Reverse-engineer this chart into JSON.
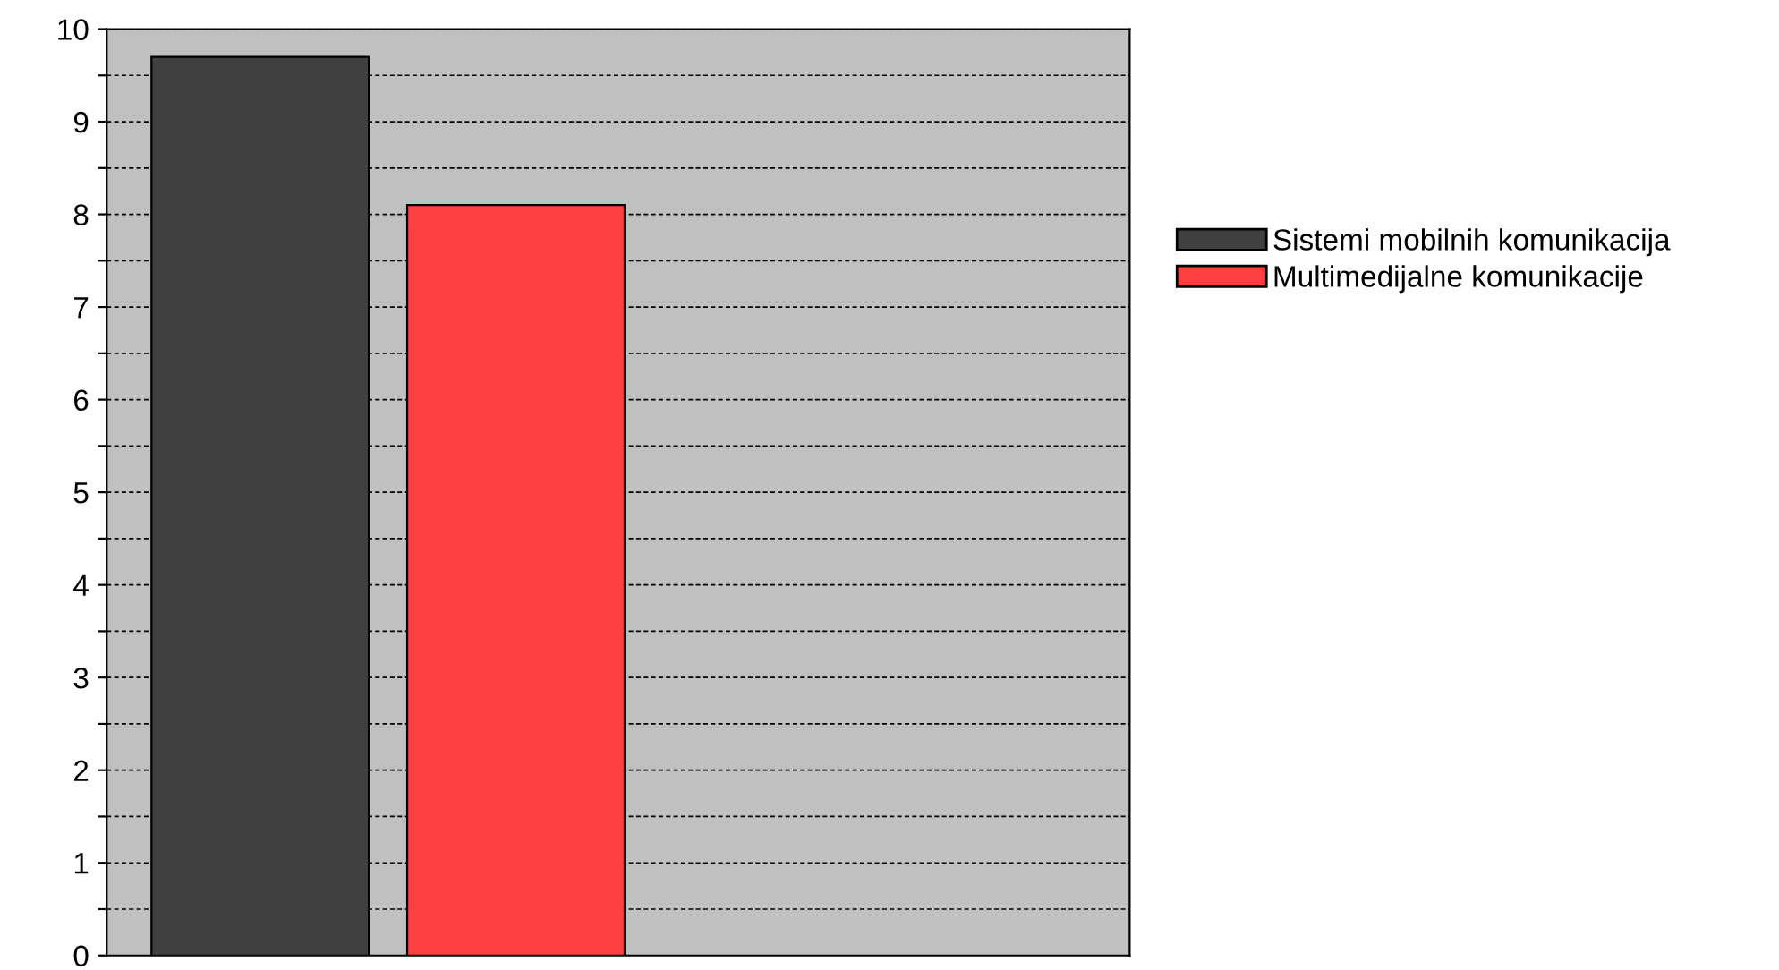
{
  "chart_data": {
    "type": "bar",
    "categories": [
      null
    ],
    "series": [
      {
        "name": "Sistemi mobilnih komunikacija",
        "color": "#404040",
        "values": [
          9.7
        ]
      },
      {
        "name": "Multimedijalne komunikacije",
        "color": "#ff4040",
        "values": [
          8.1
        ]
      }
    ],
    "ylim": [
      0,
      10
    ],
    "yticks": [
      0,
      {
        "value": 0.5,
        "label": null
      },
      1,
      {
        "value": 1.5,
        "label": null
      },
      2,
      {
        "value": 2.5,
        "label": null
      },
      3,
      {
        "value": 3.5,
        "label": null
      },
      4,
      {
        "value": 4.5,
        "label": null
      },
      5,
      {
        "value": 5.5,
        "label": null
      },
      6,
      {
        "value": 6.5,
        "label": null
      },
      7,
      {
        "value": 7.5,
        "label": null
      },
      8,
      {
        "value": 8.5,
        "label": null
      },
      9,
      {
        "value": 9.5,
        "label": null
      },
      10
    ],
    "grid": "y",
    "legend": "right"
  }
}
